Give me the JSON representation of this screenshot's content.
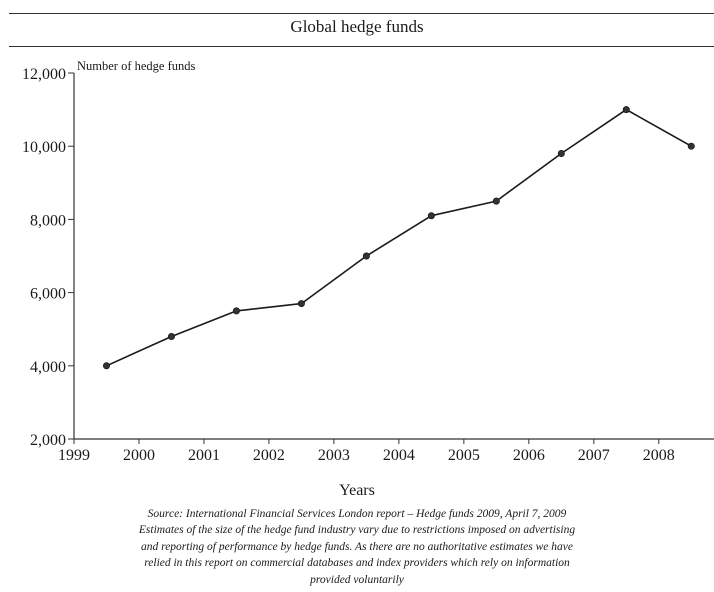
{
  "chart_data": {
    "type": "line",
    "title": "Global hedge funds",
    "ylabel": "Number of hedge funds",
    "xlabel": "Years",
    "ylim": [
      2000,
      12000
    ],
    "xlim": [
      1999,
      2008.85
    ],
    "yticks": [
      2000,
      4000,
      6000,
      8000,
      10000,
      12000
    ],
    "ytick_labels": [
      "2,000",
      "4,000",
      "6,000",
      "8,000",
      "10,000",
      "12,000"
    ],
    "xticks": [
      1999,
      2000,
      2001,
      2002,
      2003,
      2004,
      2005,
      2006,
      2007,
      2008
    ],
    "xtick_labels": [
      "1999",
      "2000",
      "2001",
      "2002",
      "2003",
      "2004",
      "2005",
      "2006",
      "2007",
      "2008"
    ],
    "x": [
      1999.5,
      2000.5,
      2001.5,
      2002.5,
      2003.5,
      2004.5,
      2005.5,
      2006.5,
      2007.5,
      2008.5
    ],
    "y": [
      4000,
      4800,
      5500,
      5700,
      7000,
      8100,
      8500,
      9800,
      11000,
      10000
    ],
    "grid": false,
    "colors": {
      "line": "#1a1a1a",
      "marker": "#333333"
    }
  },
  "caption": {
    "lines": [
      "Source: International Financial Services London report – Hedge funds 2009, April 7, 2009",
      "Estimates of the size of the hedge fund industry vary due to restrictions imposed on advertising",
      "and reporting of performance by hedge funds. As there are no authoritative estimates we have",
      "relied in this report on commercial databases and index providers which rely on information",
      "provided voluntarily"
    ]
  }
}
